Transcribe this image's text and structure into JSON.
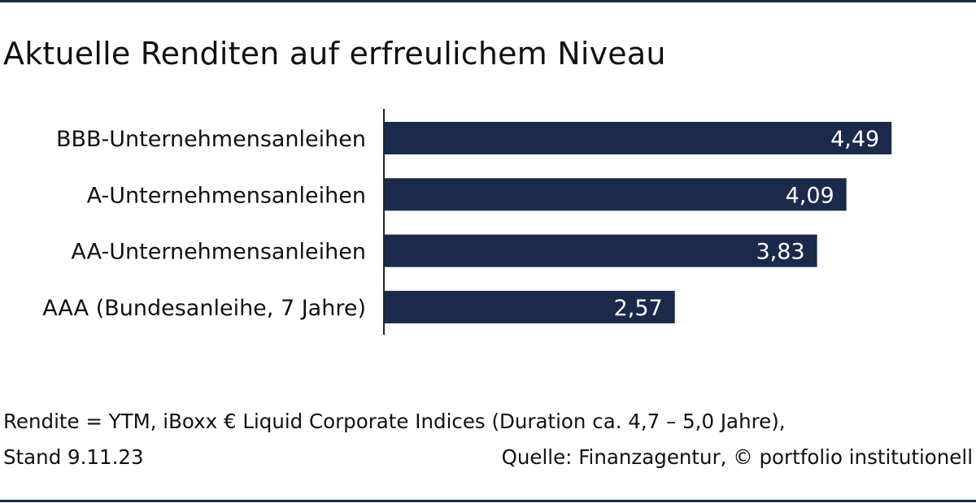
{
  "title": "Aktuelle Renditen auf erfreulichem Niveau",
  "chart_data": {
    "type": "bar",
    "orientation": "horizontal",
    "categories": [
      "BBB-Unternehmensanleihen",
      "A-Unternehmensanleihen",
      "AA-Unternehmensanleihen",
      "AAA (Bundesanleihe, 7 Jahre)"
    ],
    "values": [
      4.49,
      4.09,
      3.83,
      2.57
    ],
    "value_labels": [
      "4,49",
      "4,09",
      "3,83",
      "2,57"
    ],
    "bar_color": "#1b2a4a",
    "label_color": "#ffffff",
    "xlim": [
      0,
      5.0
    ],
    "grid": false,
    "legend": "none"
  },
  "footer": {
    "line1": "Rendite = YTM, iBoxx € Liquid Corporate Indices (Duration ca. 4,7 – 5,0 Jahre),",
    "date": "Stand 9.11.23",
    "source": "Quelle: Finanzagentur, © portfolio institutionell"
  },
  "colors": {
    "accent": "#1b2a4a",
    "text": "#111111",
    "background": "#ffffff"
  }
}
